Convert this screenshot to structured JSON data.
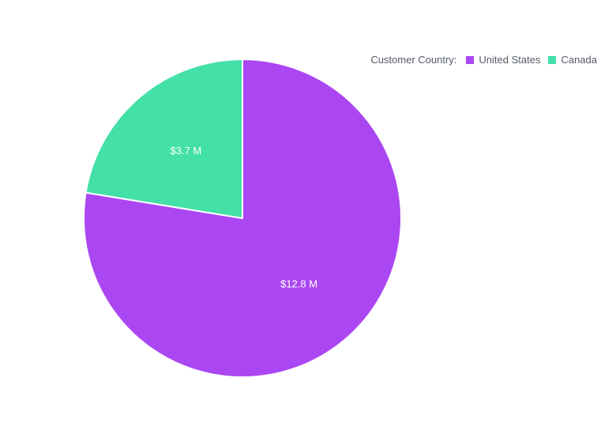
{
  "chart_data": {
    "type": "pie",
    "legend": {
      "title": "Customer Country:",
      "placement": "top-right"
    },
    "slices": [
      {
        "name": "United States",
        "value": 12.8,
        "label": "$12.8 M",
        "color": "#AB47F2"
      },
      {
        "name": "Canada",
        "value": 3.7,
        "label": "$3.7 M",
        "color": "#43E0A8"
      }
    ]
  }
}
